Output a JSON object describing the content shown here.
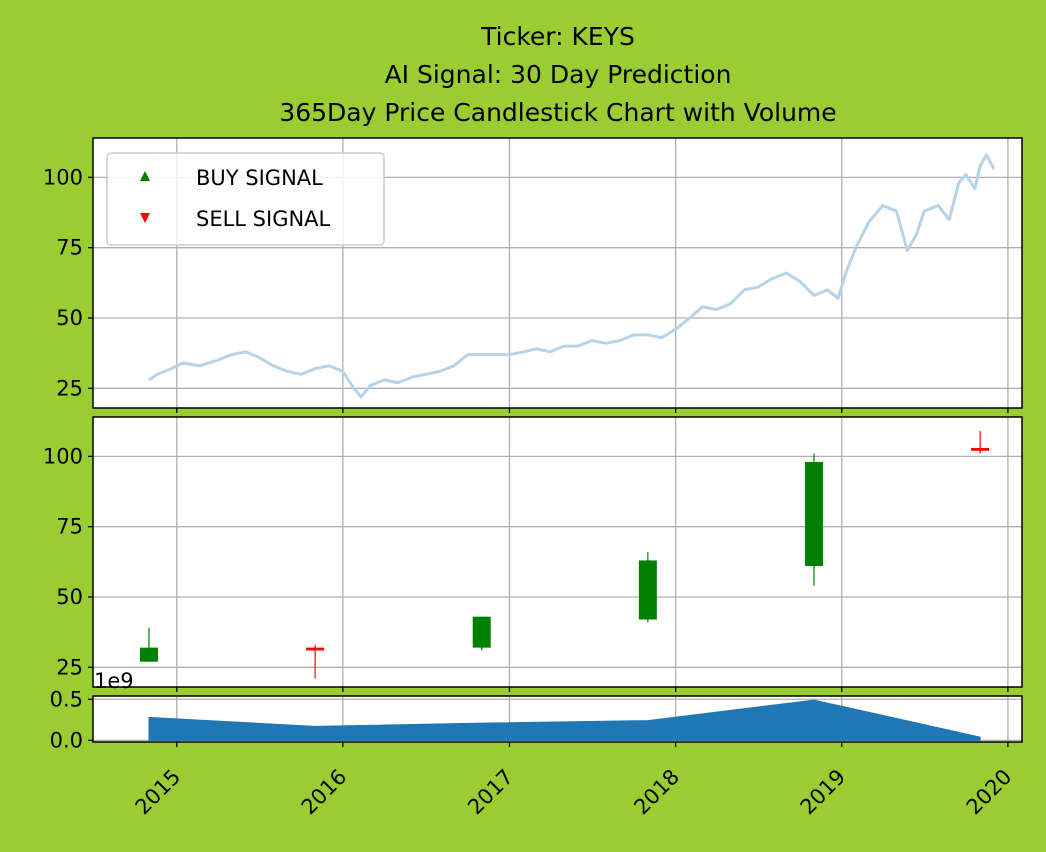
{
  "title_lines": [
    "Ticker: KEYS",
    "AI Signal: 30 Day Prediction",
    "365Day Price Candlestick Chart with Volume"
  ],
  "colors": {
    "background": "#9acd32",
    "price_line": "#b7d3e8",
    "candle_up": "#008000",
    "candle_down": "#ff0000",
    "volume_fill": "#1f77b4",
    "grid": "#b0b0b0"
  },
  "chart_data": [
    {
      "type": "line",
      "panel": "price",
      "series": [
        {
          "points": [
            [
              "2014-11-01",
              28
            ],
            [
              "2014-11-20",
              30
            ],
            [
              "2014-12-20",
              32
            ],
            [
              "2015-01-15",
              34
            ],
            [
              "2015-02-20",
              33
            ],
            [
              "2015-04-01",
              35
            ],
            [
              "2015-05-01",
              37
            ],
            [
              "2015-06-01",
              38
            ],
            [
              "2015-07-01",
              36
            ],
            [
              "2015-08-01",
              33
            ],
            [
              "2015-09-01",
              31
            ],
            [
              "2015-10-01",
              30
            ],
            [
              "2015-11-01",
              32
            ],
            [
              "2015-12-01",
              33
            ],
            [
              "2016-01-01",
              31
            ],
            [
              "2016-01-25",
              25
            ],
            [
              "2016-02-10",
              22
            ],
            [
              "2016-03-01",
              26
            ],
            [
              "2016-04-01",
              28
            ],
            [
              "2016-05-01",
              27
            ],
            [
              "2016-06-01",
              29
            ],
            [
              "2016-07-01",
              30
            ],
            [
              "2016-08-01",
              31
            ],
            [
              "2016-09-01",
              33
            ],
            [
              "2016-10-01",
              37
            ],
            [
              "2016-11-01",
              37
            ],
            [
              "2016-12-01",
              37
            ],
            [
              "2017-01-01",
              37
            ],
            [
              "2017-02-01",
              38
            ],
            [
              "2017-03-01",
              39
            ],
            [
              "2017-04-01",
              38
            ],
            [
              "2017-05-01",
              40
            ],
            [
              "2017-06-01",
              40
            ],
            [
              "2017-07-01",
              42
            ],
            [
              "2017-08-01",
              41
            ],
            [
              "2017-09-01",
              42
            ],
            [
              "2017-10-01",
              44
            ],
            [
              "2017-11-01",
              44
            ],
            [
              "2017-12-01",
              43
            ],
            [
              "2018-01-01",
              46
            ],
            [
              "2018-02-01",
              50
            ],
            [
              "2018-03-01",
              54
            ],
            [
              "2018-04-01",
              53
            ],
            [
              "2018-05-01",
              55
            ],
            [
              "2018-06-01",
              60
            ],
            [
              "2018-07-01",
              61
            ],
            [
              "2018-08-01",
              64
            ],
            [
              "2018-09-01",
              66
            ],
            [
              "2018-10-01",
              63
            ],
            [
              "2018-11-01",
              58
            ],
            [
              "2018-12-01",
              60
            ],
            [
              "2018-12-24",
              57
            ],
            [
              "2019-01-10",
              66
            ],
            [
              "2019-02-01",
              75
            ],
            [
              "2019-03-01",
              84
            ],
            [
              "2019-04-01",
              90
            ],
            [
              "2019-05-01",
              88
            ],
            [
              "2019-05-25",
              74
            ],
            [
              "2019-06-15",
              80
            ],
            [
              "2019-07-01",
              88
            ],
            [
              "2019-08-01",
              90
            ],
            [
              "2019-08-25",
              85
            ],
            [
              "2019-09-15",
              98
            ],
            [
              "2019-10-01",
              101
            ],
            [
              "2019-10-20",
              96
            ],
            [
              "2019-11-01",
              104
            ],
            [
              "2019-11-15",
              108
            ],
            [
              "2019-12-01",
              103
            ]
          ]
        }
      ],
      "ylim": [
        18,
        114
      ],
      "yticks": [
        25,
        50,
        75,
        100
      ],
      "grid": true,
      "legend": {
        "position": "upper-left",
        "entries": [
          {
            "label": "BUY SIGNAL",
            "marker": "triangle-up",
            "color": "#008000"
          },
          {
            "label": "SELL SIGNAL",
            "marker": "triangle-down",
            "color": "#ff0000"
          }
        ]
      }
    },
    {
      "type": "candlestick",
      "panel": "candles",
      "candles": [
        {
          "date": "2014-11-01",
          "open": 27,
          "high": 39,
          "low": 27,
          "close": 32
        },
        {
          "date": "2015-11-01",
          "open": 32,
          "high": 33,
          "low": 21,
          "close": 31
        },
        {
          "date": "2016-11-01",
          "open": 32,
          "high": 43,
          "low": 31,
          "close": 43
        },
        {
          "date": "2017-11-01",
          "open": 42,
          "high": 66,
          "low": 41,
          "close": 63
        },
        {
          "date": "2018-11-01",
          "open": 61,
          "high": 101,
          "low": 54,
          "close": 98
        },
        {
          "date": "2019-11-01",
          "open": 103,
          "high": 109,
          "low": 101,
          "close": 102
        }
      ],
      "ylim": [
        18,
        114
      ],
      "yticks": [
        25,
        50,
        75,
        100
      ],
      "grid": true
    },
    {
      "type": "area",
      "panel": "volume",
      "offset_label": "1e9",
      "points": [
        [
          "2014-11-01",
          0.28
        ],
        [
          "2015-11-01",
          0.17
        ],
        [
          "2016-11-01",
          0.21
        ],
        [
          "2017-11-01",
          0.24
        ],
        [
          "2018-11-01",
          0.49
        ],
        [
          "2019-11-01",
          0.04
        ]
      ],
      "ylim": [
        -0.02,
        0.54
      ],
      "yticks": [
        "0.0",
        "0.5"
      ],
      "yticks_values": [
        0.0,
        0.5
      ],
      "xticks": [
        "2015",
        "2016",
        "2017",
        "2018",
        "2019",
        "2020"
      ],
      "grid": true
    }
  ]
}
